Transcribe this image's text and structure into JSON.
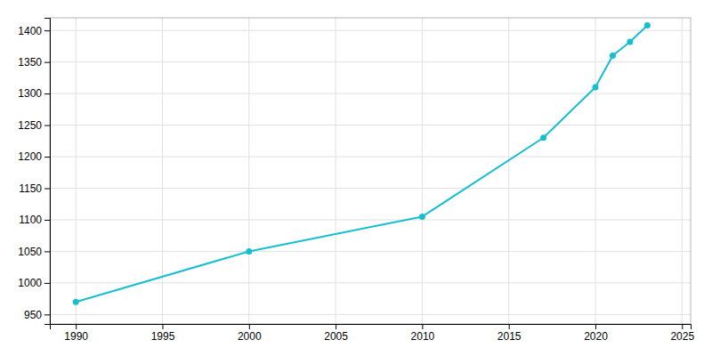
{
  "chart_data": {
    "type": "line",
    "x": [
      1990,
      2000,
      2010,
      2017,
      2020,
      2021,
      2022,
      2023
    ],
    "values": [
      970,
      1050,
      1105,
      1230,
      1310,
      1360,
      1382,
      1408
    ],
    "color": "#17becf",
    "marker": "circle",
    "xlim": [
      1988.5,
      2025.5
    ],
    "ylim": [
      935,
      1420
    ],
    "xticks": [
      1990,
      1995,
      2000,
      2005,
      2010,
      2015,
      2020,
      2025
    ],
    "yticks": [
      950,
      1000,
      1050,
      1100,
      1150,
      1200,
      1250,
      1300,
      1350,
      1400
    ],
    "grid": true
  }
}
